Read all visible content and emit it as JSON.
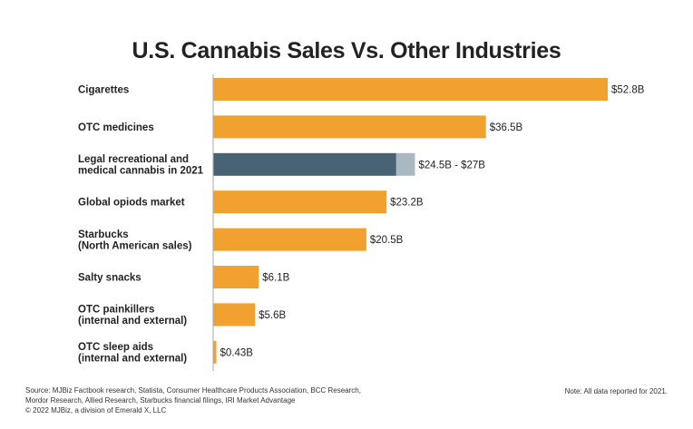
{
  "chart_data": {
    "type": "bar",
    "orientation": "horizontal",
    "title": "U.S. Cannabis Sales Vs. Other Industries",
    "xlabel": "",
    "ylabel": "",
    "xlim": [
      0,
      52.8
    ],
    "unit": "billion USD",
    "categories": [
      [
        "Cigarettes"
      ],
      [
        "OTC medicines"
      ],
      [
        "Legal recreational and",
        "medical cannabis in 2021"
      ],
      [
        "Global opiods market"
      ],
      [
        "Starbucks",
        "(North American sales)"
      ],
      [
        "Salty snacks"
      ],
      [
        "OTC painkillers",
        "(internal and external)"
      ],
      [
        "OTC sleep aids",
        "(internal and external)"
      ]
    ],
    "values": [
      52.8,
      36.5,
      24.5,
      23.2,
      20.5,
      6.1,
      5.6,
      0.43
    ],
    "range_high": [
      null,
      null,
      27,
      null,
      null,
      null,
      null,
      null
    ],
    "value_labels": [
      "$52.8B",
      "$36.5B",
      "$24.5B - $27B",
      "$23.2B",
      "$20.5B",
      "$6.1B",
      "$5.6B",
      "$0.43B"
    ],
    "colors": {
      "bar": "#F0A12F",
      "highlight": "#476374",
      "range": "#A9B8C1",
      "axis": "#aaaaaa"
    },
    "highlight_index": 2
  },
  "footer": {
    "source_line1": "Source: MJBiz Factbook research, Statista, Consumer Healthcare Products Association, BCC Research,",
    "source_line2": "Mordor Research, Allied Research, Starbucks financial filings, IRI Market Advantage",
    "copyright": "© 2022 MJBiz, a division of Emerald X, LLC",
    "note": "Note: All data reported for 2021."
  }
}
